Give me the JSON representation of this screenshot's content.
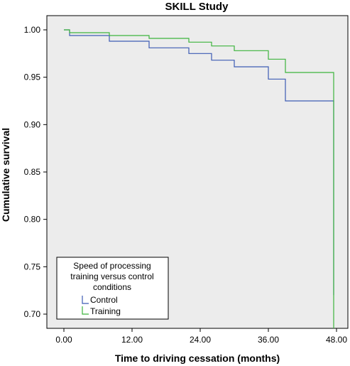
{
  "chart_data": {
    "type": "line",
    "title": "SKILL Study",
    "xlabel": "Time to driving cessation (months)",
    "ylabel": "Cumulative survival",
    "xlim": [
      -3,
      50
    ],
    "ylim": [
      0.685,
      1.015
    ],
    "x_ticks": [
      0,
      12,
      24,
      36,
      48
    ],
    "x_tick_labels": [
      "0.00",
      "12.00",
      "24.00",
      "36.00",
      "48.00"
    ],
    "y_ticks": [
      0.7,
      0.75,
      0.8,
      0.85,
      0.9,
      0.95,
      1.0
    ],
    "y_tick_labels": [
      "0.70",
      "0.75",
      "0.80",
      "0.85",
      "0.90",
      "0.95",
      "1.00"
    ],
    "grid": false,
    "plot_background": "#ececec",
    "legend": {
      "title_lines": [
        "Speed of processing",
        "training versus  control",
        "conditions"
      ],
      "placement": "bottom-left"
    },
    "series": [
      {
        "name": "Control",
        "color": "#3c5bb4",
        "step": true,
        "x": [
          0,
          1,
          8,
          15,
          22,
          26,
          30,
          36,
          39,
          47.5,
          47.5
        ],
        "y": [
          1.0,
          0.994,
          0.988,
          0.981,
          0.975,
          0.968,
          0.961,
          0.948,
          0.925,
          0.925,
          0.72
        ]
      },
      {
        "name": "Training",
        "color": "#3cb43c",
        "step": true,
        "x": [
          0,
          1,
          8,
          15,
          22,
          26,
          30,
          36,
          39,
          47.5,
          47.5
        ],
        "y": [
          1.0,
          0.997,
          0.994,
          0.991,
          0.987,
          0.983,
          0.978,
          0.969,
          0.955,
          0.955,
          0.685
        ]
      }
    ]
  }
}
